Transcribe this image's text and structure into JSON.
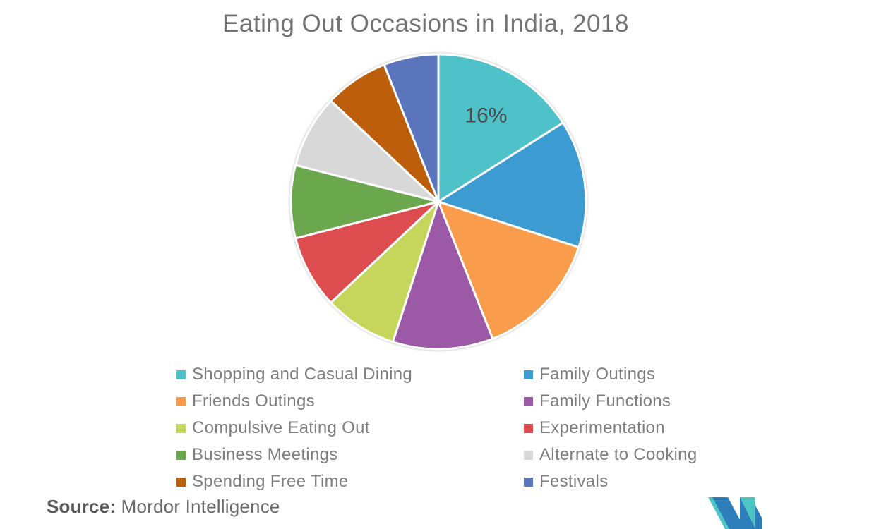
{
  "title": "Eating Out Occasions in India, 2018",
  "colors": {
    "background": "#ffffff",
    "title_text": "#737373",
    "legend_text": "#7E7E7E",
    "data_label_text": "#4B4B4D",
    "slice_separator": "#ffffff",
    "logo_blue": "#2F7EBC",
    "logo_teal": "#4EC5C5"
  },
  "chart_data": {
    "type": "pie",
    "title": "Eating Out Occasions in India, 2018",
    "start_angle_deg": 0,
    "direction": "clockwise",
    "legend_position": "bottom-two-columns",
    "units": "percent",
    "series": [
      {
        "name": "Shopping and Casual Dining",
        "value": 16,
        "color": "#4FC1C8",
        "data_label": "16%"
      },
      {
        "name": "Family Outings",
        "value": 14,
        "color": "#3C9BD0",
        "data_label": ""
      },
      {
        "name": "Friends Outings",
        "value": 14,
        "color": "#F99D4D",
        "data_label": ""
      },
      {
        "name": "Family Functions",
        "value": 11,
        "color": "#9B59A6",
        "data_label": ""
      },
      {
        "name": "Compulsive Eating Out",
        "value": 8,
        "color": "#C6D65C",
        "data_label": ""
      },
      {
        "name": "Experimentation",
        "value": 8,
        "color": "#DD4C4E",
        "data_label": ""
      },
      {
        "name": "Business Meetings",
        "value": 8,
        "color": "#6BA84D",
        "data_label": ""
      },
      {
        "name": "Alternate to Cooking",
        "value": 8,
        "color": "#D8D8D8",
        "data_label": ""
      },
      {
        "name": "Spending Free Time",
        "value": 7,
        "color": "#BC5E0C",
        "data_label": ""
      },
      {
        "name": "Festivals",
        "value": 6,
        "color": "#5A75BC",
        "data_label": ""
      }
    ]
  },
  "source": {
    "prefix": "Source:",
    "text": "Mordor Intelligence"
  },
  "logo": {
    "name": "mordor-intelligence-logo"
  }
}
